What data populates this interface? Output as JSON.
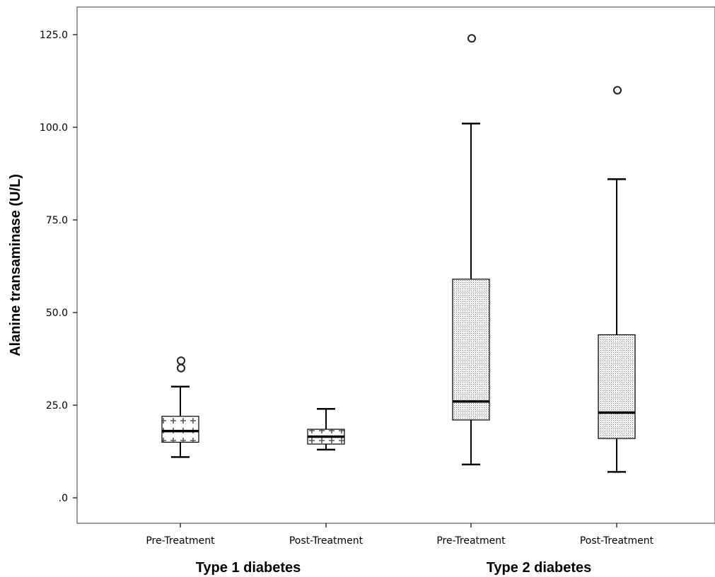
{
  "chart_data": {
    "type": "boxplot",
    "ylabel": "Alanine transaminase (U/L)",
    "ylim": [
      -7,
      132
    ],
    "yticks": [
      0,
      25,
      50,
      75,
      100,
      125
    ],
    "ytick_labels": [
      ".0",
      "25.0",
      "50.0",
      "75.0",
      "100.0",
      "125.0"
    ],
    "groups": [
      {
        "label": "Type 1 diabetes",
        "boxes": [
          {
            "category": "Pre-Treatment",
            "pattern": "plus",
            "min": 11,
            "q1": 15,
            "median": 18,
            "q3": 22,
            "max": 30,
            "outliers": [
              35,
              37
            ]
          },
          {
            "category": "Post-Treatment",
            "pattern": "plus",
            "min": 13,
            "q1": 14.5,
            "median": 16.5,
            "q3": 18.5,
            "max": 24,
            "outliers": []
          }
        ]
      },
      {
        "label": "Type 2 diabetes",
        "boxes": [
          {
            "category": "Pre-Treatment",
            "pattern": "dots",
            "min": 9,
            "q1": 21,
            "median": 26,
            "q3": 59,
            "max": 101,
            "outliers": [
              124
            ]
          },
          {
            "category": "Post-Treatment",
            "pattern": "dots",
            "min": 7,
            "q1": 16,
            "median": 23,
            "q3": 44,
            "max": 86,
            "outliers": [
              110
            ]
          }
        ]
      }
    ],
    "grid": false
  }
}
